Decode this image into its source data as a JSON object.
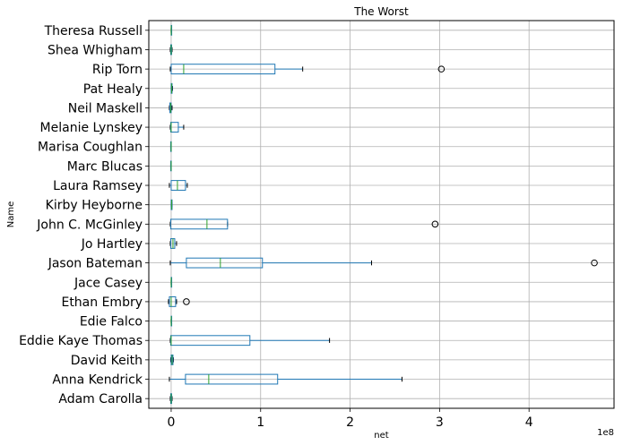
{
  "chart_data": {
    "type": "boxplot",
    "orientation": "horizontal",
    "title": "The Worst",
    "xlabel": "net",
    "ylabel": "Name",
    "x_offset_label": "1e8",
    "x_scale": 100000000,
    "xlim": [
      -0.25,
      4.95
    ],
    "xticks": [
      0,
      1,
      2,
      3,
      4
    ],
    "grid": true,
    "colors": {
      "box": "#1f77b4",
      "median": "#2ca02c",
      "grid": "#b0b0b0",
      "flier": "#000000"
    },
    "categories": [
      "Adam Carolla",
      "Anna Kendrick",
      "David Keith",
      "Eddie Kaye Thomas",
      "Edie Falco",
      "Ethan Embry",
      "Jace Casey",
      "Jason Bateman",
      "Jo Hartley",
      "John C. McGinley",
      "Kirby Heyborne",
      "Laura Ramsey",
      "Marc Blucas",
      "Marisa Coughlan",
      "Melanie Lynskey",
      "Neil Maskell",
      "Pat Healy",
      "Rip Torn",
      "Shea Whigham",
      "Theresa Russell"
    ],
    "boxes": [
      {
        "name": "Adam Carolla",
        "whislo": -0.01,
        "q1": -0.005,
        "med": 0.0,
        "q3": 0.005,
        "whishi": 0.01,
        "fliers": []
      },
      {
        "name": "Anna Kendrick",
        "whislo": -0.02,
        "q1": 0.16,
        "med": 0.42,
        "q3": 1.19,
        "whishi": 2.58,
        "fliers": []
      },
      {
        "name": "David Keith",
        "whislo": -0.005,
        "q1": 0.0,
        "med": 0.01,
        "q3": 0.02,
        "whishi": 0.025,
        "fliers": []
      },
      {
        "name": "Eddie Kaye Thomas",
        "whislo": -0.01,
        "q1": -0.005,
        "med": 0.0,
        "q3": 0.88,
        "whishi": 1.77,
        "fliers": []
      },
      {
        "name": "Edie Falco",
        "whislo": 0.0,
        "q1": 0.0,
        "med": 0.0,
        "q3": 0.0,
        "whishi": 0.0,
        "fliers": []
      },
      {
        "name": "Ethan Embry",
        "whislo": -0.03,
        "q1": -0.02,
        "med": 0.0,
        "q3": 0.05,
        "whishi": 0.06,
        "fliers": [
          0.17
        ]
      },
      {
        "name": "Jace Casey",
        "whislo": 0.0,
        "q1": 0.0,
        "med": 0.0,
        "q3": 0.0,
        "whishi": 0.0,
        "fliers": []
      },
      {
        "name": "Jason Bateman",
        "whislo": -0.01,
        "q1": 0.17,
        "med": 0.55,
        "q3": 1.02,
        "whishi": 2.24,
        "fliers": [
          4.73
        ]
      },
      {
        "name": "Jo Hartley",
        "whislo": -0.01,
        "q1": -0.005,
        "med": 0.02,
        "q3": 0.04,
        "whishi": 0.06,
        "fliers": []
      },
      {
        "name": "John C. McGinley",
        "whislo": -0.01,
        "q1": -0.005,
        "med": 0.4,
        "q3": 0.63,
        "whishi": 0.63,
        "fliers": [
          2.95
        ]
      },
      {
        "name": "Kirby Heyborne",
        "whislo": 0.0,
        "q1": 0.0,
        "med": 0.005,
        "q3": 0.01,
        "whishi": 0.01,
        "fliers": []
      },
      {
        "name": "Laura Ramsey",
        "whislo": -0.02,
        "q1": 0.0,
        "med": 0.07,
        "q3": 0.16,
        "whishi": 0.18,
        "fliers": []
      },
      {
        "name": "Marc Blucas",
        "whislo": -0.005,
        "q1": -0.005,
        "med": 0.0,
        "q3": 0.0,
        "whishi": 0.0,
        "fliers": []
      },
      {
        "name": "Marisa Coughlan",
        "whislo": -0.005,
        "q1": -0.005,
        "med": 0.0,
        "q3": 0.0,
        "whishi": 0.0,
        "fliers": []
      },
      {
        "name": "Melanie Lynskey",
        "whislo": -0.01,
        "q1": -0.005,
        "med": 0.0,
        "q3": 0.08,
        "whishi": 0.14,
        "fliers": []
      },
      {
        "name": "Neil Maskell",
        "whislo": -0.02,
        "q1": -0.015,
        "med": -0.005,
        "q3": 0.0,
        "whishi": 0.01,
        "fliers": []
      },
      {
        "name": "Pat Healy",
        "whislo": 0.0,
        "q1": 0.0,
        "med": 0.005,
        "q3": 0.01,
        "whishi": 0.015,
        "fliers": []
      },
      {
        "name": "Rip Torn",
        "whislo": -0.01,
        "q1": 0.0,
        "med": 0.14,
        "q3": 1.16,
        "whishi": 1.47,
        "fliers": [
          3.02
        ]
      },
      {
        "name": "Shea Whigham",
        "whislo": -0.01,
        "q1": -0.005,
        "med": 0.0,
        "q3": 0.005,
        "whishi": 0.01,
        "fliers": []
      },
      {
        "name": "Theresa Russell",
        "whislo": 0.0,
        "q1": 0.0,
        "med": 0.0,
        "q3": 0.0,
        "whishi": 0.0,
        "fliers": []
      }
    ]
  }
}
